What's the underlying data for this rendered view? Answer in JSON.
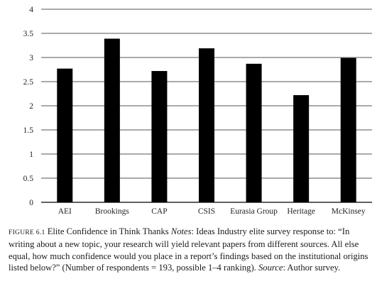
{
  "chart_data": {
    "type": "bar",
    "categories": [
      "AEI",
      "Brookings",
      "CAP",
      "CSIS",
      "Eurasia Group",
      "Heritage",
      "McKinsey"
    ],
    "values": [
      2.77,
      3.39,
      2.72,
      3.19,
      2.87,
      2.22,
      2.99
    ],
    "ylim": [
      0,
      4
    ],
    "yticks": [
      "0",
      "0.5",
      "1",
      "1.5",
      "2",
      "2.5",
      "3",
      "3.5",
      "4"
    ],
    "title": "",
    "xlabel": "",
    "ylabel": "",
    "grid": true,
    "bar_color": "#000000"
  },
  "caption": {
    "figure_label": "FIGURE 6.1",
    "title": "Elite Confidence in Think Thanks",
    "notes_label": "Notes",
    "notes_text": ": Ideas Industry elite survey response to: “In writing about a new topic, your research will yield relevant papers from different sources. All else equal, how much confidence would you place in a report’s findings based on the institutional origins listed below?” (Number of respondents = 193, possible 1–4 ranking). ",
    "source_label": "Source",
    "source_text": ": Author survey."
  }
}
